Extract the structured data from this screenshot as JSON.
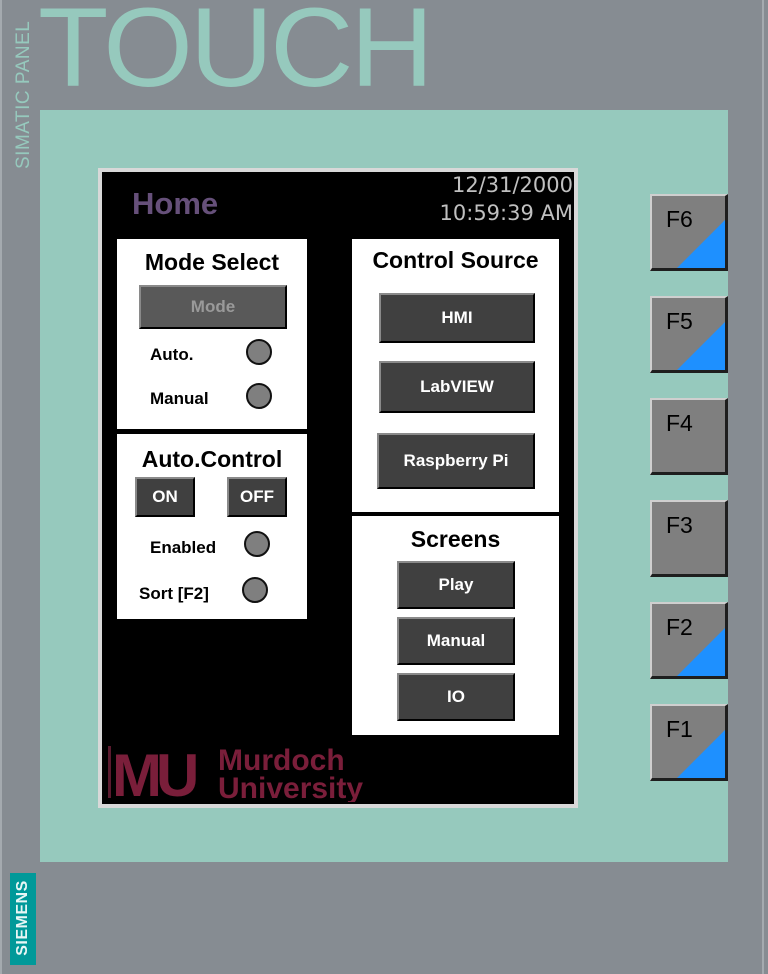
{
  "device": {
    "series_label": "SIMATIC PANEL",
    "model_label": "TOUCH",
    "maker_label": "SIEMENS"
  },
  "screen": {
    "title": "Home",
    "date": "12/31/2000",
    "time": "10:59:39 AM"
  },
  "mode_select": {
    "title": "Mode Select",
    "mode_button": "Mode",
    "auto_label": "Auto.",
    "manual_label": "Manual"
  },
  "auto_control": {
    "title": "Auto.Control",
    "on_button": "ON",
    "off_button": "OFF",
    "enabled_label": "Enabled",
    "sort_label": "Sort [F2]"
  },
  "control_source": {
    "title": "Control Source",
    "buttons": [
      "HMI",
      "LabVIEW",
      "Raspberry Pi"
    ]
  },
  "screens": {
    "title": "Screens",
    "buttons": [
      "Play",
      "Manual",
      "IO"
    ]
  },
  "logo": {
    "mark": "MU",
    "line1": "Murdoch",
    "line2": "University"
  },
  "function_keys": [
    "F6",
    "F5",
    "F4",
    "F3",
    "F2",
    "F1"
  ],
  "colors": {
    "bezel": "#868c92",
    "panel_green": "#96c9bd",
    "title_purple": "#66507a",
    "logo_maroon": "#7a1e3a",
    "fkey_accent": "#1e90ff",
    "siemens_teal": "#009999"
  }
}
